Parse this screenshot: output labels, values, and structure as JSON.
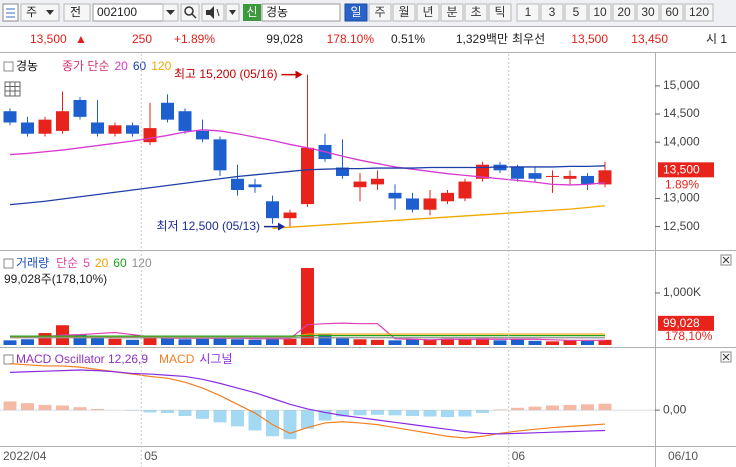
{
  "toolbar": {
    "period": "주",
    "market": "전",
    "code": "002100",
    "badge": "신",
    "name": "경농",
    "intervals": [
      "일",
      "주",
      "월",
      "년",
      "분",
      "초",
      "틱",
      "1",
      "3",
      "5",
      "10",
      "20",
      "30",
      "60",
      "120"
    ],
    "selected": 0
  },
  "quote": {
    "price": "13,500",
    "arrow": "▲",
    "change": "250",
    "change_rate": "+1.89%",
    "volume": "99,028",
    "volume_ratio": "178.10%",
    "turnover_rate": "0.51%",
    "amount": "1,329백만",
    "best_label": "최우선",
    "ask": "13,500",
    "bid": "13,450",
    "open_label": "시 1"
  },
  "chart_data": [
    {
      "type": "candlestick",
      "title": "경농",
      "legend_label": "종가 단순",
      "legend_color": "#d6306e",
      "up_color": "#e8231c",
      "down_color": "#1e5fd0",
      "open": [
        14550,
        14350,
        14150,
        14200,
        14750,
        14350,
        14150,
        14300,
        14000,
        14700,
        14550,
        14200,
        14050,
        13350,
        13250,
        12950,
        12650,
        12900,
        13950,
        13550,
        13200,
        13250,
        13100,
        13000,
        12800,
        12950,
        13000,
        13350,
        13600,
        13550,
        13450,
        13400,
        13350,
        13400,
        13250
      ],
      "high": [
        14600,
        14450,
        14450,
        14900,
        14800,
        14750,
        14350,
        14350,
        14700,
        14850,
        14600,
        14400,
        14100,
        13600,
        13350,
        13050,
        12800,
        15200,
        14150,
        14050,
        13450,
        13500,
        13250,
        13100,
        13150,
        13150,
        13350,
        13650,
        13650,
        13600,
        13550,
        13500,
        13500,
        13450,
        13650
      ],
      "low": [
        14300,
        14100,
        14100,
        14150,
        14400,
        14100,
        14100,
        14100,
        13950,
        14350,
        14150,
        14000,
        13400,
        13050,
        13100,
        12550,
        12500,
        12850,
        13650,
        13350,
        12950,
        13150,
        12800,
        12750,
        12700,
        12900,
        12950,
        13300,
        13450,
        13300,
        13300,
        13100,
        13250,
        13150,
        13200
      ],
      "close": [
        14350,
        14150,
        14400,
        14550,
        14450,
        14150,
        14300,
        14150,
        14250,
        14400,
        14200,
        14050,
        13500,
        13150,
        13200,
        12650,
        12750,
        13900,
        13700,
        13400,
        13300,
        13350,
        13000,
        12800,
        13000,
        13100,
        13300,
        13600,
        13500,
        13350,
        13350,
        13400,
        13400,
        13250,
        13500
      ],
      "series": [
        {
          "name": "20",
          "color": "#d83ad0",
          "values": [
            13780,
            13800,
            13830,
            13860,
            13900,
            13940,
            13980,
            14020,
            14070,
            14120,
            14180,
            14220,
            14200,
            14150,
            14090,
            14030,
            13960,
            13900,
            13830,
            13750,
            13680,
            13620,
            13560,
            13520,
            13480,
            13440,
            13410,
            13380,
            13350,
            13320,
            13290,
            13250,
            13240,
            13250,
            13280
          ]
        },
        {
          "name": "60",
          "color": "#1f3fa8",
          "values": [
            12890,
            12920,
            12950,
            12990,
            13030,
            13070,
            13110,
            13150,
            13190,
            13230,
            13270,
            13310,
            13350,
            13390,
            13420,
            13450,
            13480,
            13510,
            13520,
            13530,
            13530,
            13540,
            13540,
            13540,
            13550,
            13550,
            13550,
            13550,
            13560,
            13560,
            13560,
            13560,
            13570,
            13570,
            13580
          ]
        },
        {
          "name": "120",
          "color": "#f0a800",
          "values": [
            null,
            null,
            null,
            null,
            null,
            null,
            null,
            null,
            null,
            null,
            null,
            null,
            null,
            null,
            null,
            12470,
            12490,
            12510,
            12530,
            12550,
            12570,
            12590,
            12610,
            12630,
            12650,
            12670,
            12690,
            12710,
            12730,
            12750,
            12770,
            12790,
            12810,
            12840,
            12870
          ]
        }
      ],
      "ylim": [
        12120,
        15460
      ],
      "yticks": [
        {
          "value": 12500,
          "label": "12,500"
        },
        {
          "value": 13000,
          "label": "13,000"
        },
        {
          "value": 14000,
          "label": "14,000"
        },
        {
          "value": 14500,
          "label": "14,500"
        },
        {
          "value": 15000,
          "label": "15,000"
        }
      ],
      "last_price": {
        "value": 13500,
        "label": "13,500"
      },
      "last_change_label": "1.89%",
      "annotations": [
        {
          "text": "최고 15,200 (05/16)",
          "index": 17,
          "value": 15200,
          "color": "#c40000"
        },
        {
          "text": "최저 12,500 (05/13)",
          "index": 16,
          "value": 12500,
          "color": "#1a2a9a"
        }
      ],
      "grid": false
    },
    {
      "type": "bar",
      "title": "거래량",
      "title_color": "#1a4fc0",
      "legend_label": "단순",
      "legend_color": "#e040a0",
      "summary_label": "99,028주(178,10%)",
      "values": [
        90000,
        110000,
        230000,
        380000,
        200000,
        150000,
        120000,
        100000,
        140000,
        130000,
        110000,
        120000,
        140000,
        110000,
        100000,
        130000,
        120000,
        1480000,
        200000,
        130000,
        110000,
        100000,
        90000,
        110000,
        100000,
        120000,
        110000,
        130000,
        90000,
        110000,
        80000,
        70000,
        90000,
        80000,
        99028
      ],
      "up_color": "#e8231c",
      "down_color": "#1e5fd0",
      "series": [
        {
          "name": "5",
          "color": "#e040b0",
          "values": [
            150000,
            150000,
            160000,
            190000,
            200000,
            220000,
            240000,
            200000,
            160000,
            130000,
            130000,
            130000,
            130000,
            130000,
            120000,
            120000,
            120000,
            390000,
            410000,
            420000,
            410000,
            410000,
            120000,
            110000,
            100000,
            110000,
            110000,
            110000,
            110000,
            110000,
            110000,
            100000,
            90000,
            90000,
            90000
          ]
        },
        {
          "name": "20",
          "color": "#f0a000",
          "values": [
            150000,
            150000,
            150000,
            150000,
            150000,
            150000,
            150000,
            150000,
            150000,
            150000,
            150000,
            150000,
            150000,
            150000,
            150000,
            150000,
            150000,
            210000,
            210000,
            210000,
            210000,
            210000,
            210000,
            210000,
            210000,
            210000,
            210000,
            210000,
            210000,
            210000,
            210000,
            210000,
            210000,
            210000,
            210000
          ]
        },
        {
          "name": "60",
          "color": "#20a020",
          "values": [
            170000,
            170000,
            170000,
            170000,
            170000,
            170000,
            170000,
            170000,
            170000,
            170000,
            170000,
            170000,
            170000,
            170000,
            170000,
            170000,
            170000,
            180000,
            180000,
            180000,
            180000,
            180000,
            180000,
            180000,
            180000,
            180000,
            180000,
            180000,
            180000,
            180000,
            180000,
            180000,
            180000,
            180000,
            180000
          ]
        },
        {
          "name": "120",
          "color": "#909090",
          "values": [
            140000,
            140000,
            140000,
            140000,
            140000,
            140000,
            140000,
            140000,
            140000,
            140000,
            140000,
            140000,
            140000,
            140000,
            140000,
            140000,
            140000,
            140000,
            140000,
            140000,
            140000,
            140000,
            140000,
            140000,
            140000,
            140000,
            140000,
            140000,
            140000,
            140000,
            140000,
            140000,
            140000,
            140000,
            140000
          ]
        }
      ],
      "ylim": [
        0,
        1730000
      ],
      "yticks": [
        {
          "value": 1000000,
          "label": "1,000K"
        }
      ],
      "last_value": {
        "value": 99028,
        "label": "99,028"
      },
      "last_ratio_label": "178,10%"
    },
    {
      "type": "macd",
      "title": "MACD Oscillator 12,26,9",
      "title_color": "#9030c0",
      "values": [
        15,
        12,
        9,
        8,
        5,
        2,
        0,
        -1,
        -4,
        -5,
        -10,
        -15,
        -21,
        -28,
        -35,
        -45,
        -50,
        -32,
        -18,
        -11,
        -9,
        -8,
        -9,
        -10,
        -11,
        -12,
        -11,
        -5,
        1,
        4,
        6,
        8,
        9,
        10,
        11
      ],
      "positive_color": "#f5b9a6",
      "negative_color": "#a3d9f2",
      "series": [
        {
          "name": "MACD",
          "color": "#f08020",
          "values": [
            80,
            78,
            76,
            76,
            74,
            70,
            66,
            62,
            58,
            55,
            48,
            38,
            25,
            10,
            -5,
            -25,
            -40,
            -30,
            -22,
            -20,
            -22,
            -25,
            -30,
            -35,
            -40,
            -45,
            -48,
            -45,
            -40,
            -36,
            -33,
            -30,
            -28,
            -26,
            -24
          ]
        },
        {
          "name": "시그널",
          "color": "#8a2be2",
          "values": [
            65,
            66,
            67,
            68,
            69,
            68,
            66,
            63,
            62,
            60,
            58,
            53,
            46,
            38,
            30,
            20,
            10,
            2,
            -4,
            -9,
            -13,
            -17,
            -21,
            -25,
            -29,
            -33,
            -37,
            -40,
            -41,
            -40,
            -39,
            -38,
            -37,
            -36,
            -35
          ]
        }
      ],
      "ylim": [
        -60,
        100
      ],
      "yticks": [
        {
          "value": 0,
          "label": "0,00"
        }
      ],
      "categories": [
        "2022/04",
        null,
        null,
        null,
        null,
        null,
        null,
        null,
        "05",
        null,
        null,
        null,
        null,
        null,
        null,
        null,
        null,
        null,
        null,
        null,
        null,
        null,
        null,
        null,
        null,
        null,
        null,
        null,
        null,
        "06",
        null,
        null,
        null,
        null,
        null
      ],
      "x_end_label": "06/10"
    }
  ]
}
